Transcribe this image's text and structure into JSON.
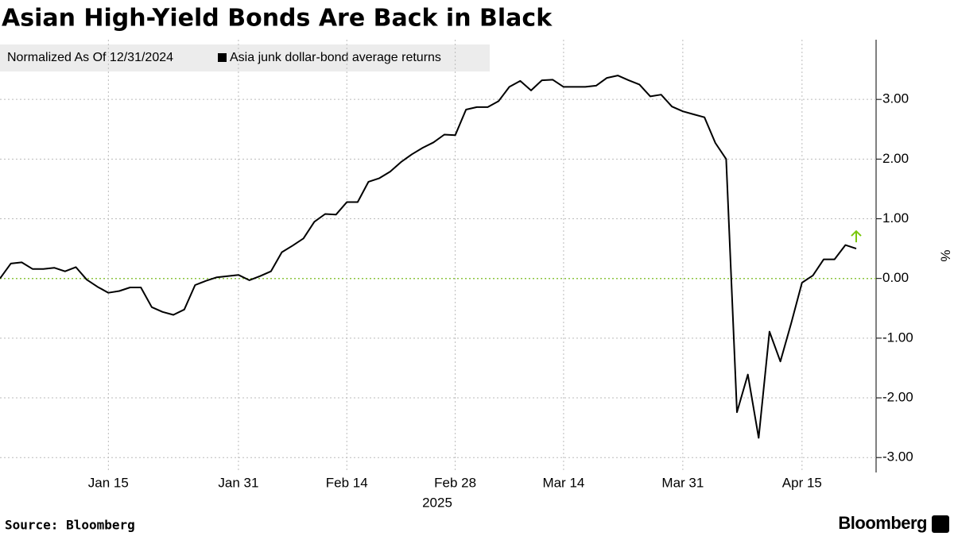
{
  "chart_data": {
    "type": "line",
    "title": "Asian High-Yield Bonds Are Back in Black",
    "legend_note": "Normalized As Of 12/31/2024",
    "x_label": "2025",
    "y_label": "%",
    "source": "Source: Bloomberg",
    "brand": "Bloomberg",
    "categories": [
      null,
      null,
      null,
      null,
      null,
      null,
      null,
      null,
      null,
      null,
      "Jan 15",
      null,
      null,
      null,
      null,
      null,
      null,
      null,
      null,
      null,
      null,
      null,
      "Jan 31",
      null,
      null,
      null,
      null,
      null,
      null,
      null,
      null,
      null,
      "Feb 14",
      null,
      null,
      null,
      null,
      null,
      null,
      null,
      null,
      null,
      "Feb 28",
      null,
      null,
      null,
      null,
      null,
      null,
      null,
      null,
      null,
      "Mar 14",
      null,
      null,
      null,
      null,
      null,
      null,
      null,
      null,
      null,
      null,
      "Mar 31",
      null,
      null,
      null,
      null,
      null,
      null,
      null,
      null,
      null,
      null,
      "Apr 15",
      null,
      null,
      null,
      null,
      null
    ],
    "series": [
      {
        "name": "Asia junk dollar-bond average returns",
        "color": "#000000",
        "values": [
          0,
          0.25,
          0.27,
          0.16,
          0.16,
          0.18,
          0.12,
          0.19,
          -0.02,
          -0.14,
          -0.24,
          -0.21,
          -0.15,
          -0.15,
          -0.48,
          -0.56,
          -0.61,
          -0.52,
          -0.11,
          -0.04,
          0.02,
          0.04,
          0.06,
          -0.03,
          0.04,
          0.12,
          0.44,
          0.55,
          0.67,
          0.95,
          1.08,
          1.07,
          1.28,
          1.28,
          1.62,
          1.68,
          1.79,
          1.95,
          2.08,
          2.19,
          2.28,
          2.41,
          2.4,
          2.83,
          2.87,
          2.87,
          2.97,
          3.21,
          3.31,
          3.15,
          3.32,
          3.33,
          3.21,
          3.21,
          3.21,
          3.23,
          3.36,
          3.4,
          3.32,
          3.25,
          3.05,
          3.08,
          2.88,
          2.8,
          2.75,
          2.7,
          2.27,
          2.0,
          -2.24,
          -1.61,
          -2.67,
          -0.89,
          -1.39,
          -0.75,
          -0.07,
          0.05,
          0.32,
          0.32,
          0.56,
          0.5
        ]
      }
    ],
    "ylim": [
      -3.25,
      4.0
    ],
    "yticks": [
      {
        "value": -3,
        "label": "-3.00"
      },
      {
        "value": -2,
        "label": "-2.00"
      },
      {
        "value": -1,
        "label": "-1.00"
      },
      {
        "value": 0,
        "label": "0.00"
      },
      {
        "value": 1,
        "label": "1.00"
      },
      {
        "value": 2,
        "label": "2.00"
      },
      {
        "value": 3,
        "label": "3.00"
      }
    ],
    "grid": true,
    "zero_line_color": "#8cc63f",
    "latest_marker_color": "#7ac70c"
  }
}
